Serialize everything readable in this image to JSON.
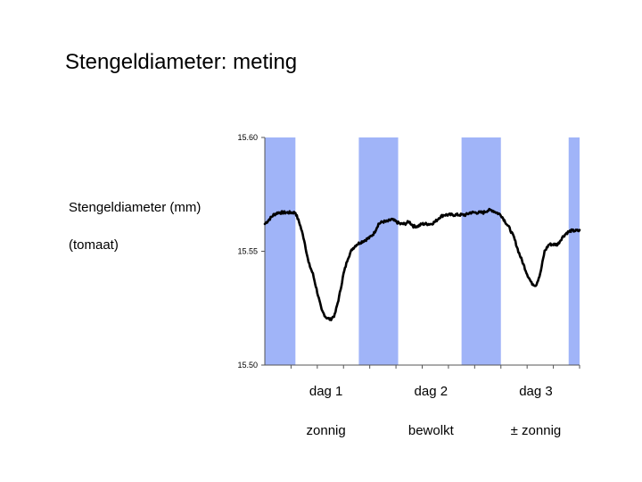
{
  "slide": {
    "title": "Stengeldiameter: meting",
    "ylabel_line1": "Stengeldiameter (mm)",
    "ylabel_line2": "(tomaat)"
  },
  "colors": {
    "day_band": "#a0b4f8",
    "line": "#000000",
    "axis": "#555555"
  },
  "chart_data": {
    "type": "line",
    "title": "",
    "xlabel": "",
    "ylabel": "Stengeldiameter (mm)",
    "ylim": [
      15.5,
      15.6
    ],
    "y_ticks": [
      "15.60",
      "15.55",
      "15.50"
    ],
    "xlim": [
      0,
      72
    ],
    "grid": false,
    "day_bands": [
      {
        "start": 0,
        "end": 7
      },
      {
        "start": 21.5,
        "end": 30.5
      },
      {
        "start": 45,
        "end": 54
      },
      {
        "start": 69.5,
        "end": 72
      }
    ],
    "day_labels": [
      {
        "day": "dag 1",
        "weather": "zonnig",
        "x": 14
      },
      {
        "day": "dag 2",
        "weather": "bewolkt",
        "x": 38
      },
      {
        "day": "dag 3",
        "weather": "± zonnig",
        "x": 62
      }
    ],
    "series": [
      {
        "x": [
          0,
          1,
          2,
          3,
          4,
          5,
          6,
          7,
          8,
          9,
          10,
          11,
          12,
          13,
          14,
          15,
          16,
          17,
          18,
          19,
          20,
          21,
          22,
          23,
          24,
          25,
          26,
          27,
          28,
          29,
          30,
          31,
          32,
          33,
          34,
          35,
          36,
          37,
          38,
          39,
          40,
          41,
          42,
          43,
          44,
          45,
          46,
          47,
          48,
          49,
          50,
          51,
          52,
          53,
          54,
          55,
          56,
          57,
          58,
          59,
          60,
          61,
          62,
          63,
          64,
          65,
          66,
          67,
          68,
          69,
          70,
          71,
          72
        ],
        "values": [
          15.562,
          15.564,
          15.566,
          15.567,
          15.567,
          15.567,
          15.567,
          15.567,
          15.562,
          15.555,
          15.545,
          15.54,
          15.532,
          15.524,
          15.521,
          15.52,
          15.522,
          15.53,
          15.54,
          15.547,
          15.551,
          15.553,
          15.554,
          15.555,
          15.556,
          15.558,
          15.562,
          15.563,
          15.563,
          15.564,
          15.563,
          15.562,
          15.562,
          15.563,
          15.561,
          15.561,
          15.562,
          15.562,
          15.562,
          15.563,
          15.565,
          15.566,
          15.566,
          15.566,
          15.566,
          15.566,
          15.566,
          15.567,
          15.567,
          15.567,
          15.567,
          15.568,
          15.568,
          15.567,
          15.566,
          15.563,
          15.56,
          15.556,
          15.55,
          15.545,
          15.54,
          15.536,
          15.535,
          15.54,
          15.55,
          15.553,
          15.553,
          15.553,
          15.556,
          15.558,
          15.559,
          15.559,
          15.559
        ]
      }
    ]
  }
}
